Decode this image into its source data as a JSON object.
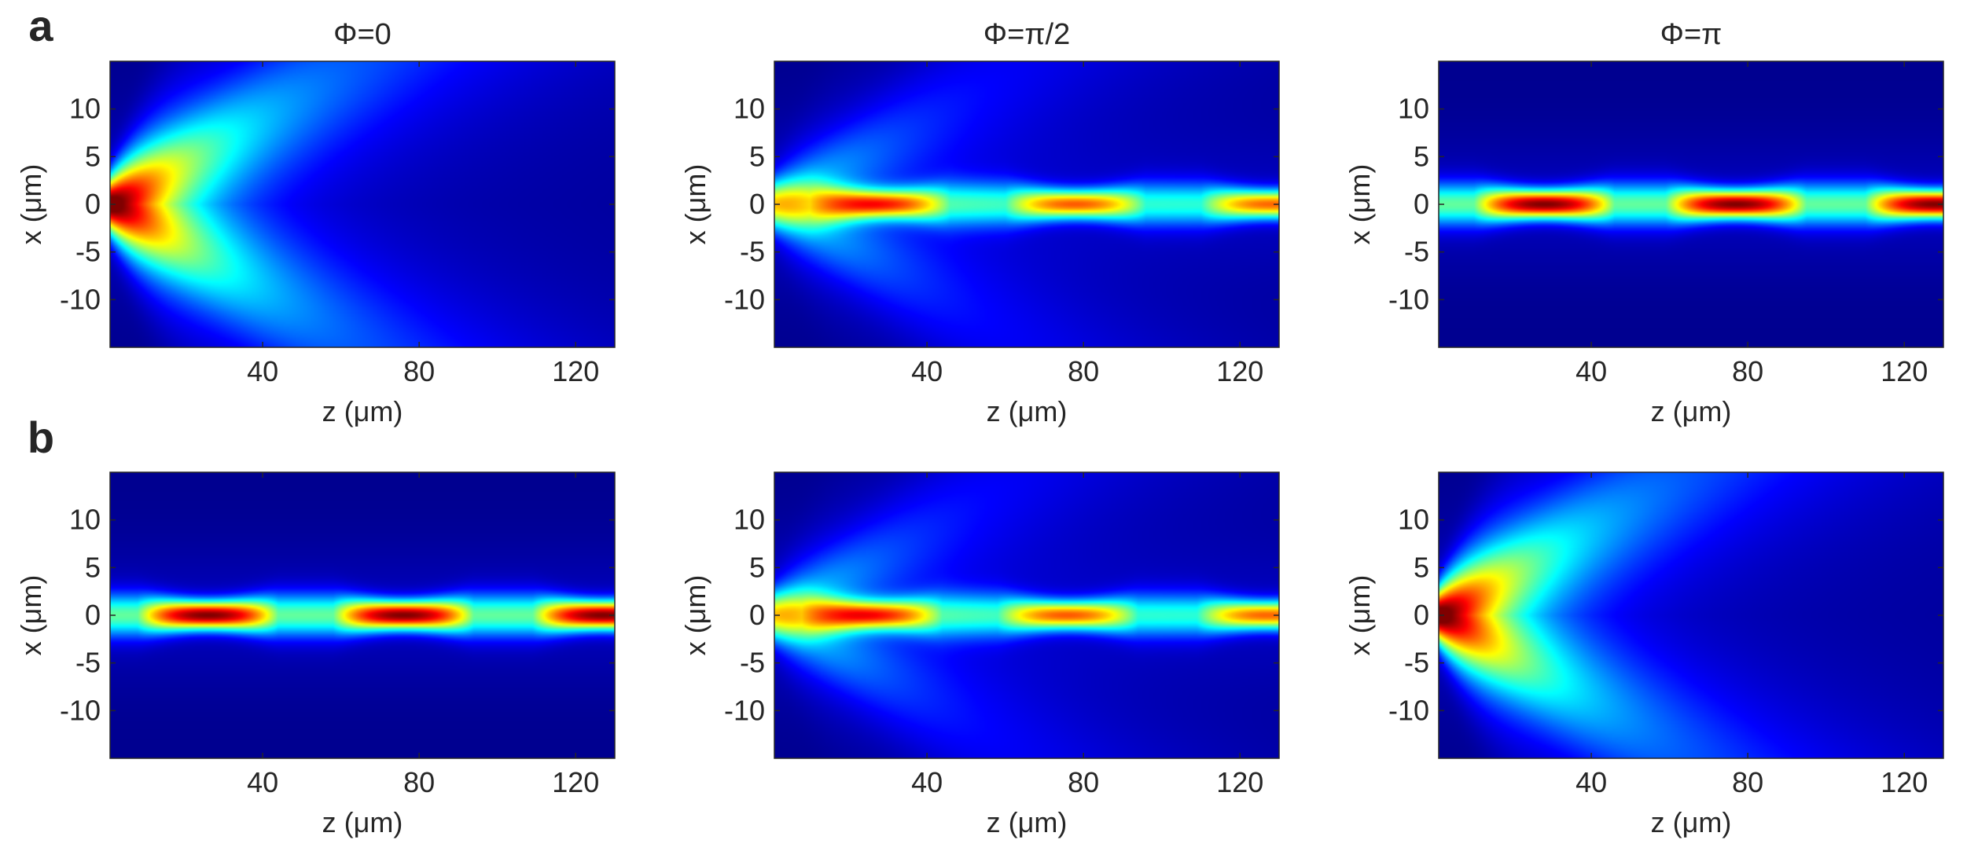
{
  "figure": {
    "row_labels": [
      "a",
      "b"
    ],
    "colormap": [
      "#00008f",
      "#0000ff",
      "#0080ff",
      "#00ffff",
      "#80ff80",
      "#ffff00",
      "#ff8000",
      "#ff0000",
      "#800000"
    ]
  },
  "chart_data": [
    {
      "type": "heatmap",
      "row": "a",
      "title": "Φ=0",
      "xlabel": "z (μm)",
      "ylabel": "x (μm)",
      "xlim": [
        1,
        130
      ],
      "ylim": [
        -15,
        15
      ],
      "xticks": [
        40,
        80,
        120
      ],
      "xtick_labels": [
        "40",
        "80",
        "120"
      ],
      "yticks": [
        10,
        5,
        0,
        -5,
        -10
      ],
      "ytick_labels": [
        "10",
        "5",
        "0",
        "-5",
        "-10"
      ],
      "guided": {
        "amplitude": 0.0,
        "focus_z": [],
        "peak_intensity": 0.0
      },
      "radiated": {
        "amplitude": 1.0,
        "waist": 2.0,
        "focus_z": 1,
        "peak_intensity": 1.0
      }
    },
    {
      "type": "heatmap",
      "row": "a",
      "title": "Φ=π/2",
      "xlabel": "z (μm)",
      "ylabel": "x (μm)",
      "xlim": [
        1,
        130
      ],
      "ylim": [
        -15,
        15
      ],
      "xticks": [
        40,
        80,
        120
      ],
      "xtick_labels": [
        "40",
        "80",
        "120"
      ],
      "yticks": [
        10,
        5,
        0,
        -5,
        -10
      ],
      "ytick_labels": [
        "10",
        "5",
        "0",
        "-5",
        "-10"
      ],
      "guided": {
        "amplitude": 0.85,
        "focus_z": [
          28,
          78,
          128
        ],
        "peak_intensity": 0.85
      },
      "radiated": {
        "amplitude": 0.55,
        "waist": 2.0,
        "focus_z": 1,
        "peak_intensity": 0.45
      }
    },
    {
      "type": "heatmap",
      "row": "a",
      "title": "Φ=π",
      "xlabel": "z (μm)",
      "ylabel": "x (μm)",
      "xlim": [
        1,
        130
      ],
      "ylim": [
        -15,
        15
      ],
      "xticks": [
        40,
        80,
        120
      ],
      "xtick_labels": [
        "40",
        "80",
        "120"
      ],
      "yticks": [
        10,
        5,
        0,
        -5,
        -10
      ],
      "ytick_labels": [
        "10",
        "5",
        "0",
        "-5",
        "-10"
      ],
      "guided": {
        "amplitude": 1.0,
        "focus_z": [
          28,
          77,
          128
        ],
        "peak_intensity": 0.95
      },
      "radiated": {
        "amplitude": 0.0,
        "waist": 2.0,
        "focus_z": 1,
        "peak_intensity": 0.0
      }
    },
    {
      "type": "heatmap",
      "row": "b",
      "title": "",
      "xlabel": "z (μm)",
      "ylabel": "x (μm)",
      "xlim": [
        1,
        130
      ],
      "ylim": [
        -15,
        15
      ],
      "xticks": [
        40,
        80,
        120
      ],
      "xtick_labels": [
        "40",
        "80",
        "120"
      ],
      "yticks": [
        10,
        5,
        0,
        -5,
        -10
      ],
      "ytick_labels": [
        "10",
        "5",
        "0",
        "-5",
        "-10"
      ],
      "guided": {
        "amplitude": 1.0,
        "focus_z": [
          26,
          76,
          127
        ],
        "peak_intensity": 0.95
      },
      "radiated": {
        "amplitude": 0.0,
        "waist": 2.0,
        "focus_z": 1,
        "peak_intensity": 0.0
      }
    },
    {
      "type": "heatmap",
      "row": "b",
      "title": "",
      "xlabel": "z (μm)",
      "ylabel": "x (μm)",
      "xlim": [
        1,
        130
      ],
      "ylim": [
        -15,
        15
      ],
      "xticks": [
        40,
        80,
        120
      ],
      "xtick_labels": [
        "40",
        "80",
        "120"
      ],
      "yticks": [
        10,
        5,
        0,
        -5,
        -10
      ],
      "ytick_labels": [
        "10",
        "5",
        "0",
        "-5",
        "-10"
      ],
      "guided": {
        "amplitude": 0.85,
        "focus_z": [
          26,
          76,
          127
        ],
        "peak_intensity": 0.85
      },
      "radiated": {
        "amplitude": 0.55,
        "waist": 2.0,
        "focus_z": 1,
        "peak_intensity": 0.45
      }
    },
    {
      "type": "heatmap",
      "row": "b",
      "title": "",
      "xlabel": "z (μm)",
      "ylabel": "x (μm)",
      "xlim": [
        1,
        130
      ],
      "ylim": [
        -15,
        15
      ],
      "xticks": [
        40,
        80,
        120
      ],
      "xtick_labels": [
        "40",
        "80",
        "120"
      ],
      "yticks": [
        10,
        5,
        0,
        -5,
        -10
      ],
      "ytick_labels": [
        "10",
        "5",
        "0",
        "-5",
        "-10"
      ],
      "guided": {
        "amplitude": 0.0,
        "focus_z": [],
        "peak_intensity": 0.0
      },
      "radiated": {
        "amplitude": 1.0,
        "waist": 2.0,
        "focus_z": 1,
        "peak_intensity": 1.0
      }
    }
  ]
}
